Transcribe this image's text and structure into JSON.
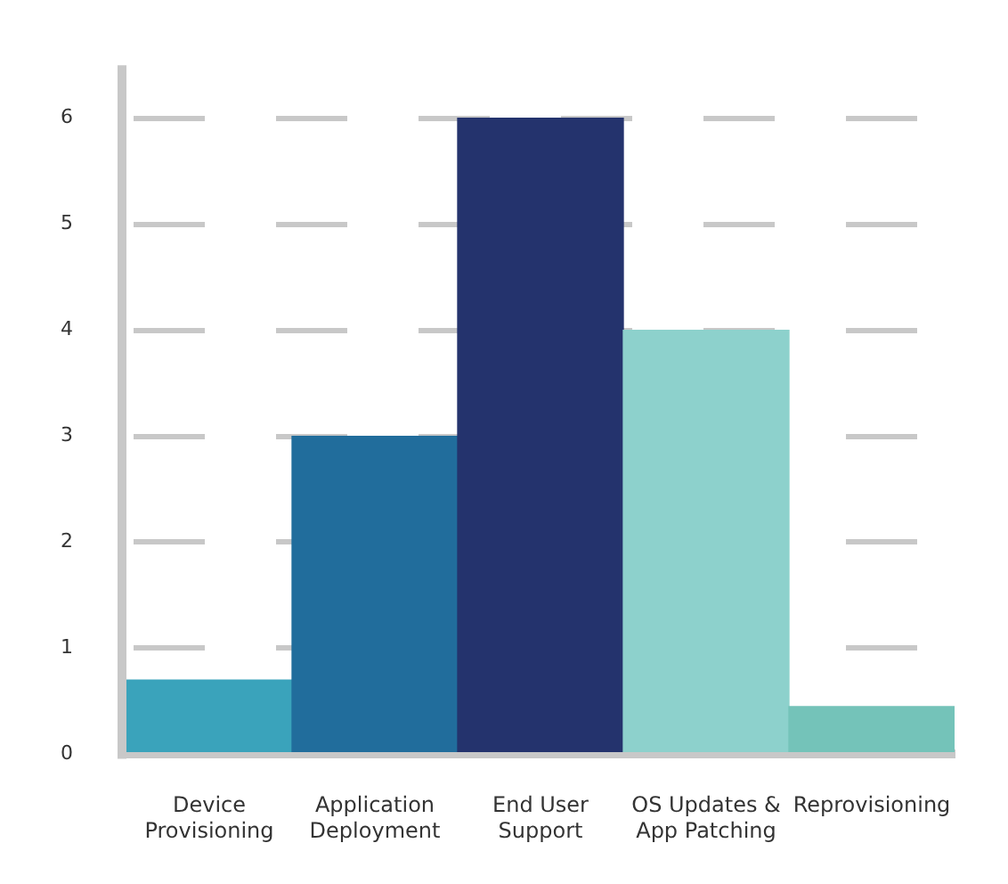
{
  "chart_data": {
    "type": "bar",
    "categories": [
      "Device Provisioning",
      "Application Deployment",
      "End User Support",
      "OS Updates & App Patching",
      "Reprovisioning"
    ],
    "values": [
      0.7,
      3,
      6,
      4,
      0.45
    ],
    "colors": [
      "#3aa3bb",
      "#216d9c",
      "#24336d",
      "#8dd1cc",
      "#74c3b9"
    ],
    "ylim": [
      0,
      6.5
    ],
    "yticks": [
      0,
      1,
      2,
      3,
      4,
      5,
      6
    ],
    "grid": "y",
    "legend": false
  }
}
